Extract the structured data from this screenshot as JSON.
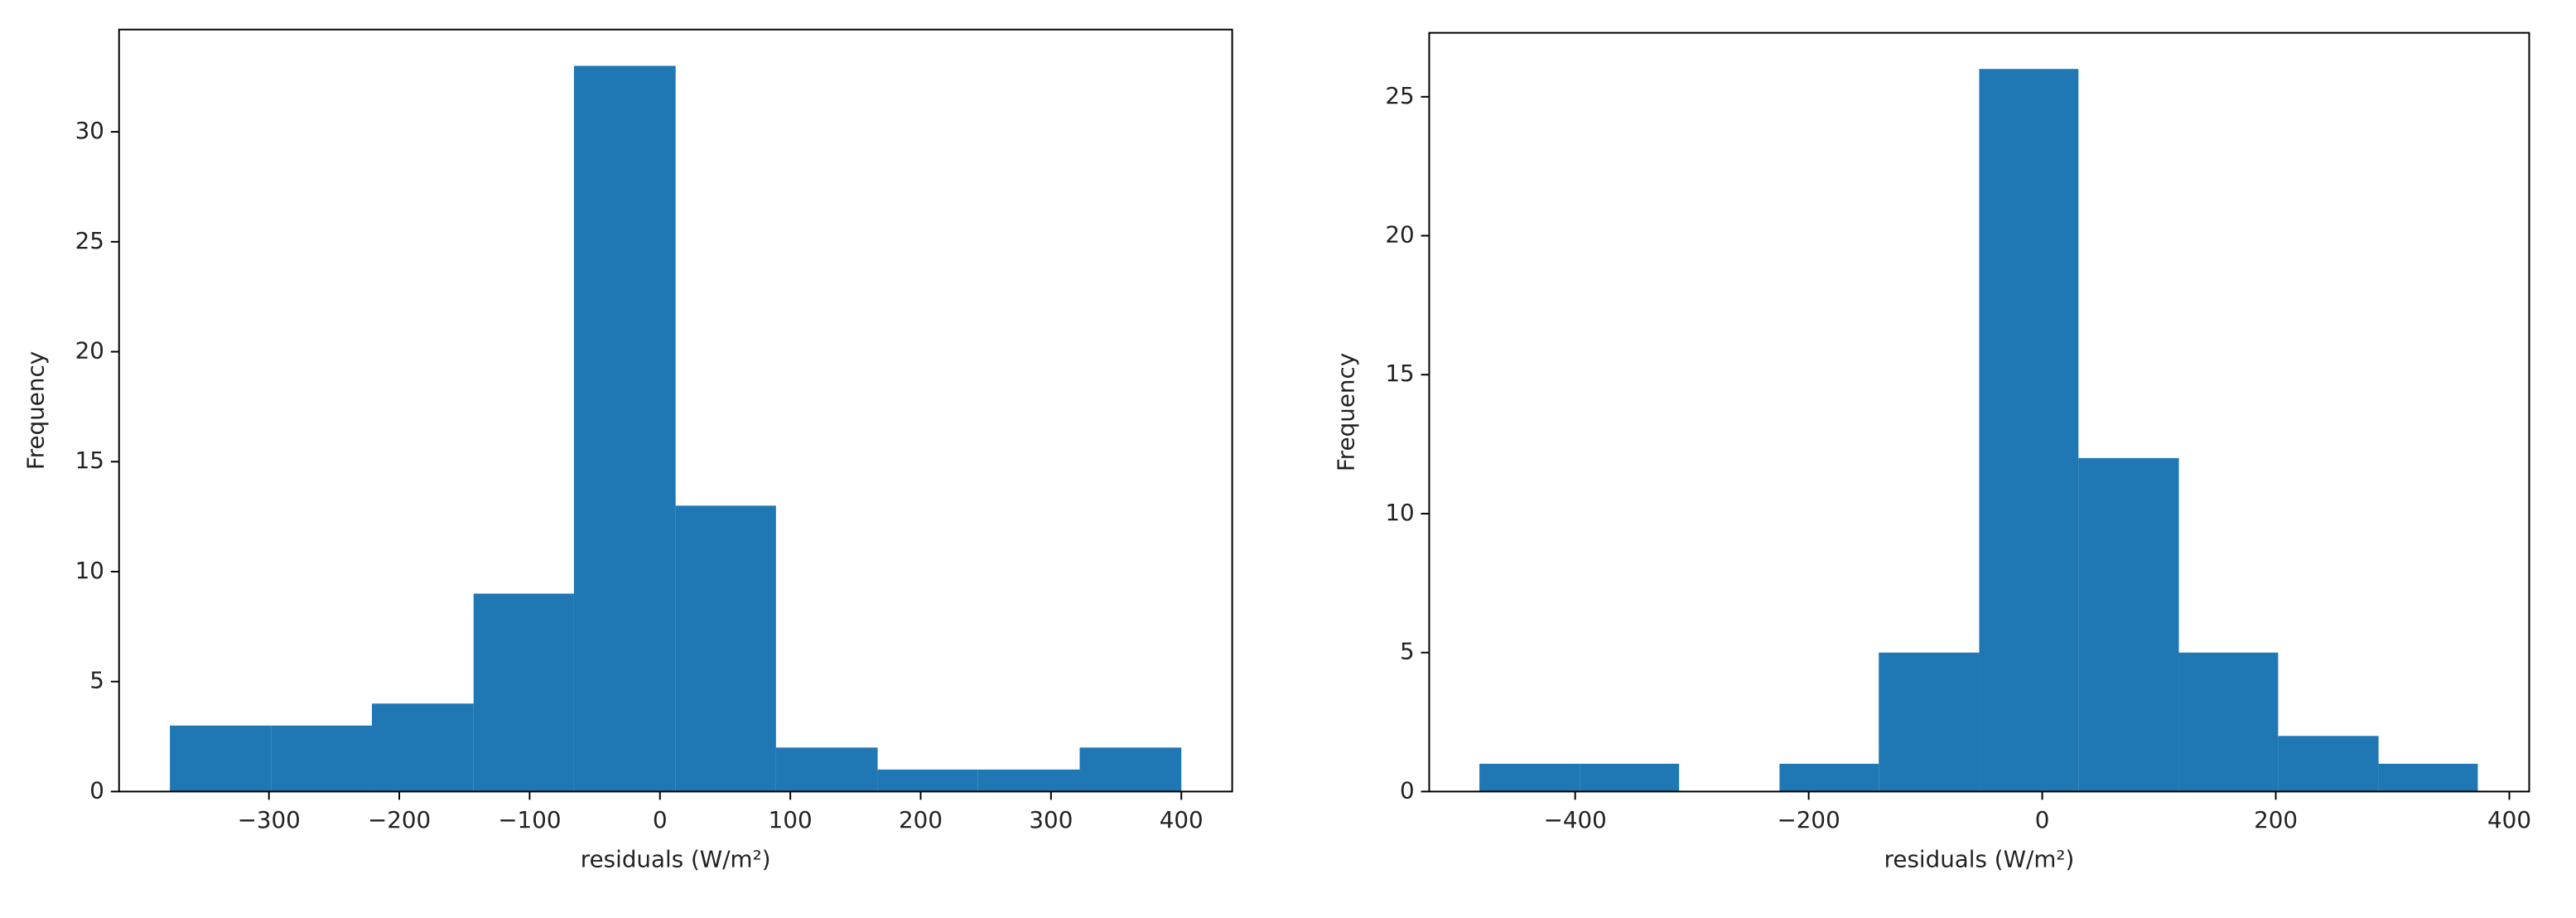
{
  "chart_data": [
    {
      "type": "histogram",
      "xlabel": "residuals (W/m²)",
      "ylabel": "Frequency",
      "color": "#1f77b4",
      "bins": [
        -376,
        -298,
        -221,
        -143,
        -66,
        12,
        89,
        167,
        244,
        322,
        400
      ],
      "counts": [
        3,
        3,
        4,
        9,
        33,
        13,
        2,
        1,
        1,
        2
      ],
      "xlim": [
        -415,
        439
      ],
      "ylim": [
        0,
        34.65
      ],
      "xticks": [
        {
          "value": -300,
          "label": "−300"
        },
        {
          "value": -200,
          "label": "−200"
        },
        {
          "value": -100,
          "label": "−100"
        },
        0,
        100,
        200,
        300,
        400
      ],
      "yticks": [
        0,
        5,
        10,
        15,
        20,
        25,
        30
      ]
    },
    {
      "type": "histogram",
      "xlabel": "residuals (W/m²)",
      "ylabel": "Frequency",
      "color": "#1f77b4",
      "bins": [
        -482,
        -396,
        -311,
        -225,
        -140,
        -54,
        31,
        117,
        202,
        288,
        373
      ],
      "counts": [
        1,
        1,
        0,
        1,
        5,
        26,
        12,
        5,
        2,
        1
      ],
      "xlim": [
        -525,
        417
      ],
      "ylim": [
        0,
        27.3
      ],
      "xticks": [
        {
          "value": -400,
          "label": "−400"
        },
        {
          "value": -200,
          "label": "−200"
        },
        0,
        200,
        400
      ],
      "yticks": [
        0,
        5,
        10,
        15,
        20,
        25
      ]
    }
  ]
}
